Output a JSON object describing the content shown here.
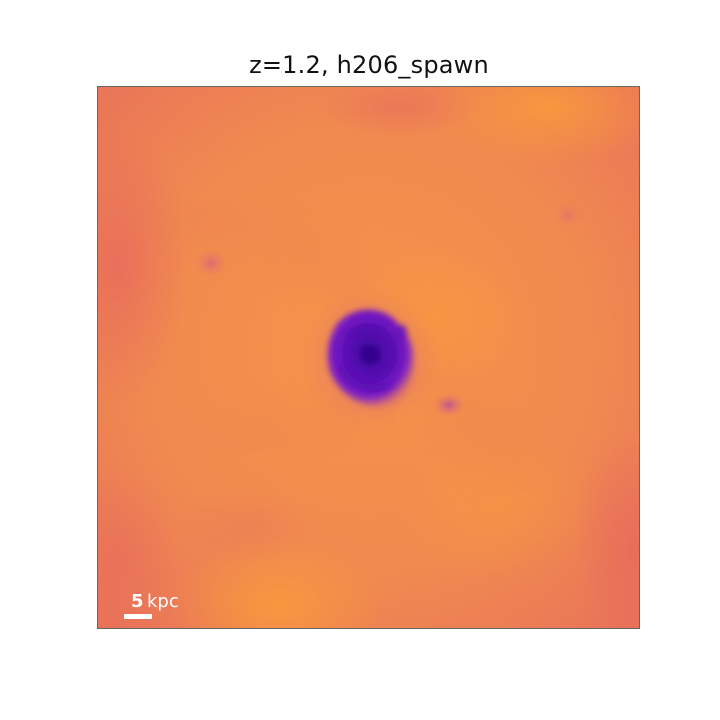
{
  "figure": {
    "title": "z=1.2, h206_spawn"
  },
  "scalebar": {
    "value": "5",
    "unit": "kpc"
  },
  "colors": {
    "background_warm": "#f08a50",
    "background_edge": "#ea7658",
    "galaxy_core": "#4a06a8",
    "galaxy_outer": "#7a1ac4",
    "satellite": "#c0508a"
  }
}
